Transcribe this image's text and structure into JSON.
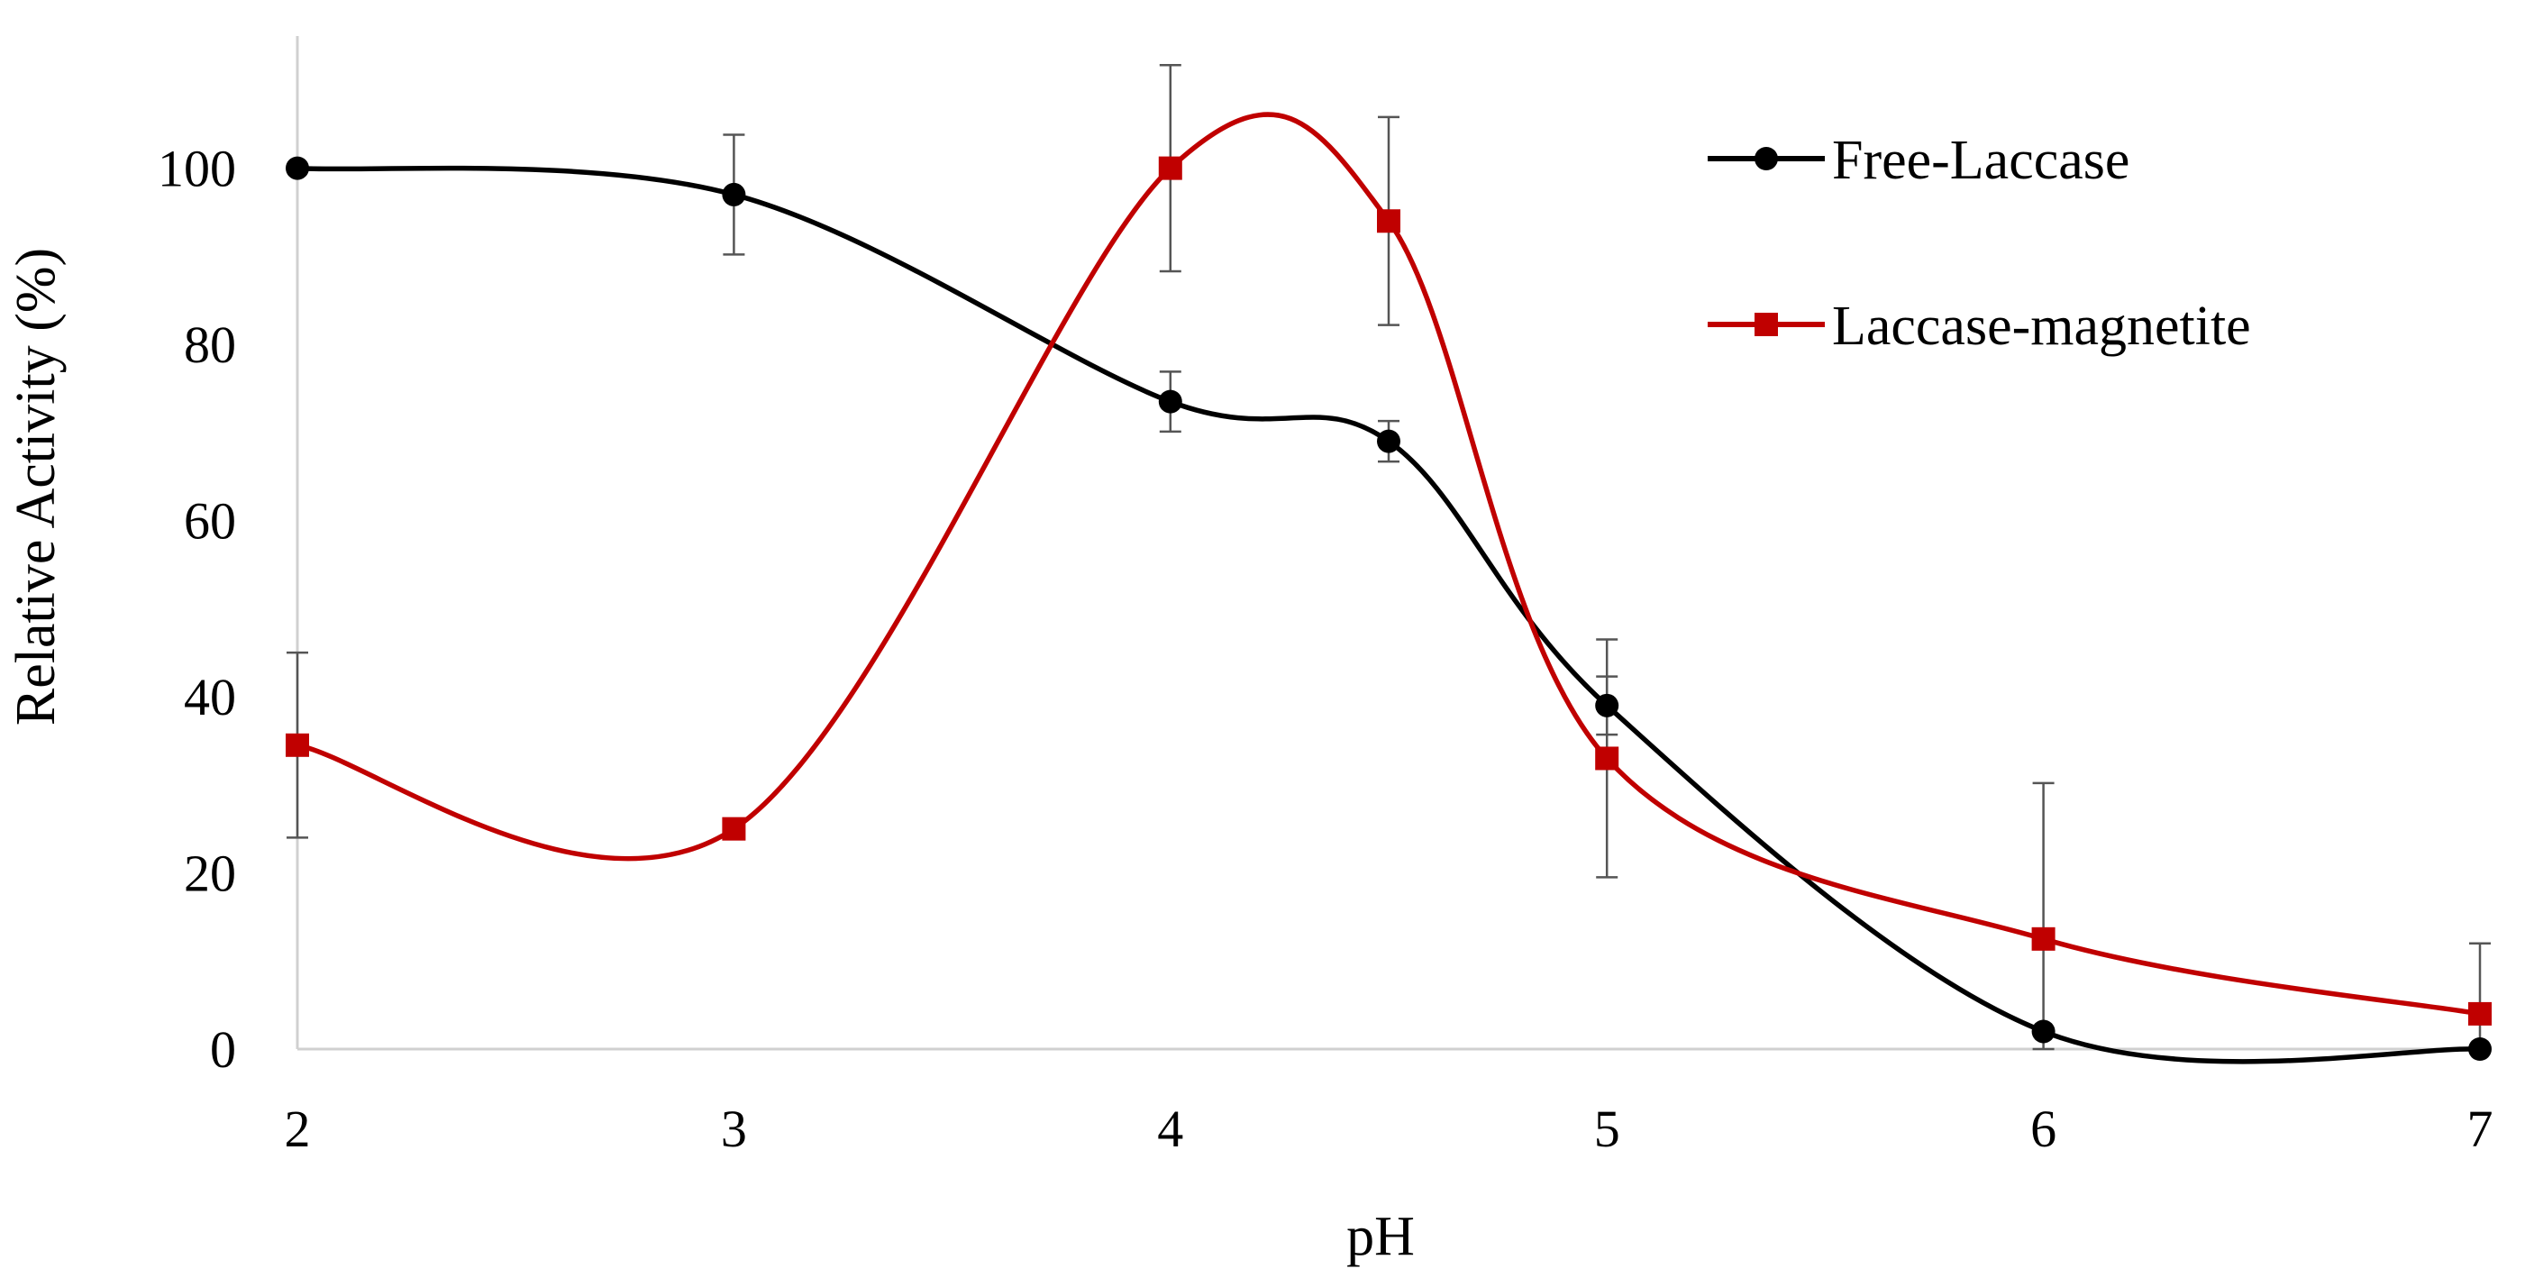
{
  "chart_data": {
    "type": "line",
    "title": "",
    "xlabel": "pH",
    "ylabel": "Relative Activity (%)",
    "xlim": [
      2,
      7
    ],
    "ylim": [
      0,
      115
    ],
    "x_ticks": [
      2,
      3,
      4,
      5,
      6,
      7
    ],
    "y_ticks": [
      0,
      20,
      40,
      60,
      80,
      100
    ],
    "x_tick_labels": [
      "2",
      "3",
      "4",
      "5",
      "6",
      "7"
    ],
    "y_tick_labels": [
      "0",
      "20",
      "40",
      "60",
      "80",
      "100"
    ],
    "grid": false,
    "smoothed": true,
    "legend_position": "top-right",
    "series": [
      {
        "name": "Free-Laccase",
        "color": "#000000",
        "marker": "circle",
        "x": [
          2,
          3,
          4,
          4.5,
          5,
          6,
          7
        ],
        "y": [
          100,
          97,
          73.5,
          69,
          39,
          2,
          0
        ],
        "error": [
          0,
          6.8,
          3.4,
          2.3,
          3.3,
          0,
          0
        ]
      },
      {
        "name": "Laccase-magnetite",
        "color": "#c00000",
        "marker": "square",
        "x": [
          2,
          3,
          4,
          4.5,
          5,
          6,
          7
        ],
        "y": [
          34.5,
          25,
          100,
          94,
          33,
          12.5,
          4
        ],
        "error": [
          10.5,
          0,
          11.7,
          11.8,
          13.5,
          17.7,
          8
        ]
      }
    ]
  }
}
